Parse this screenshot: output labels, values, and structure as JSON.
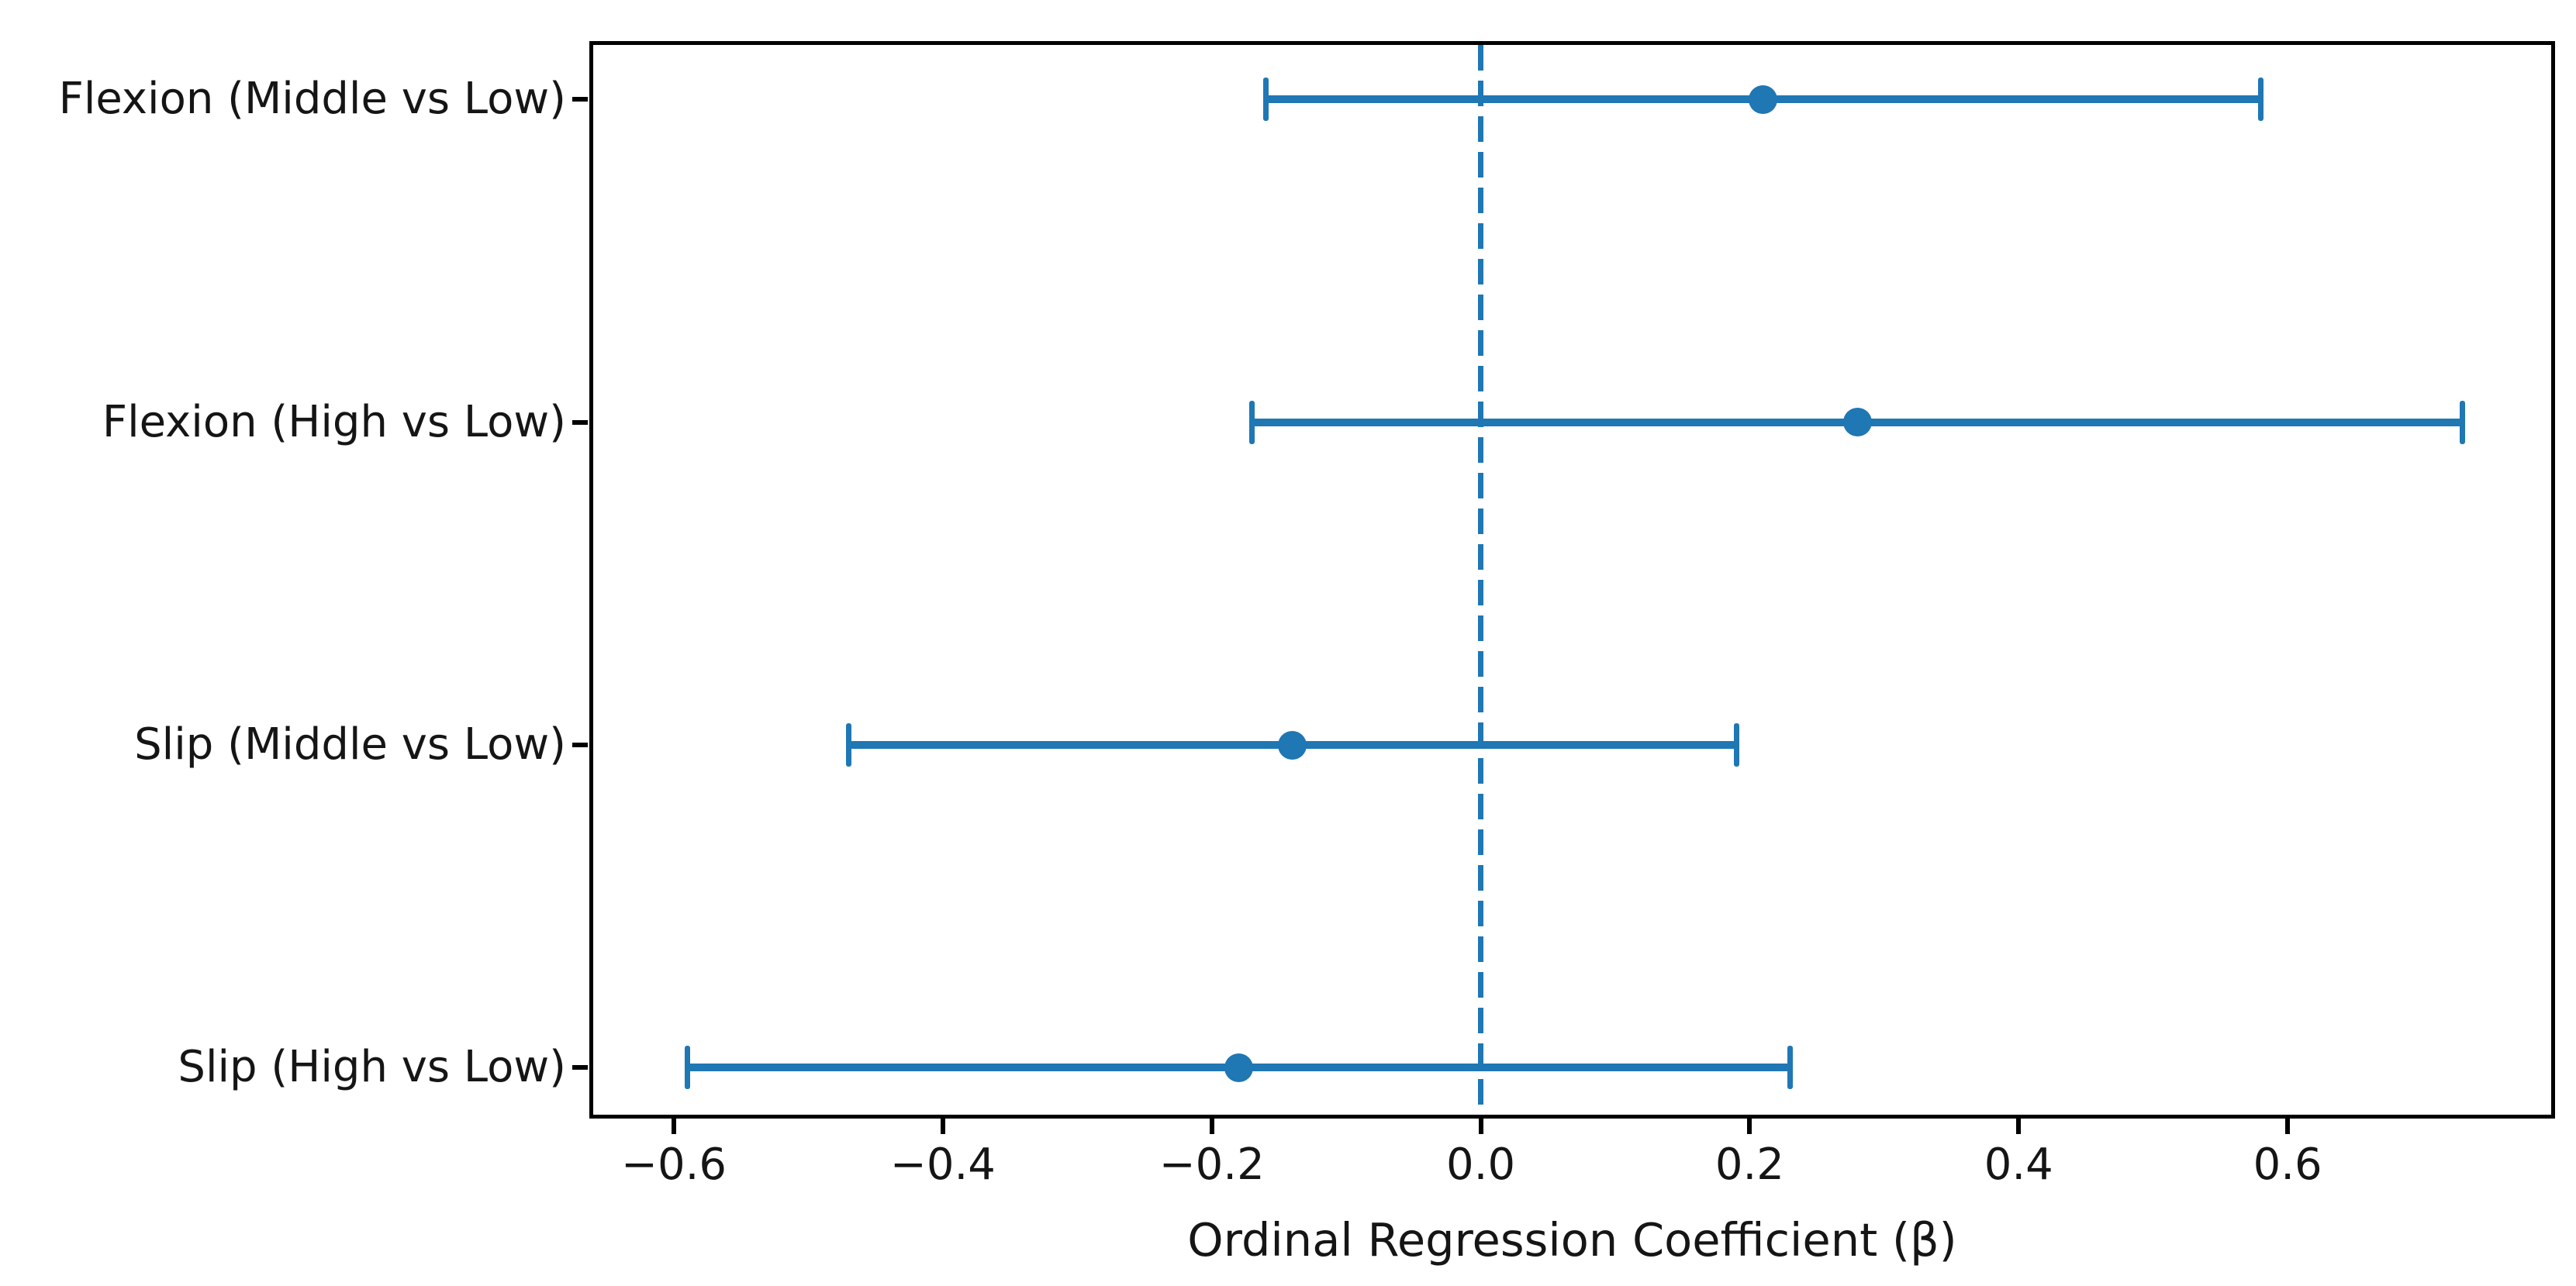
{
  "figure": {
    "background_color": "#ffffff",
    "accent_color": "#1f77b4",
    "spine_color": "#000000",
    "text_color": "#151515"
  },
  "chart_data": {
    "type": "scatter",
    "subtype": "horizontal-errorbar-coefficient-plot",
    "title": "",
    "xlabel": "Ordinal Regression Coefficient (β)",
    "ylabel": "",
    "xlim": [
      -0.66,
      0.796
    ],
    "x_ticks": [
      -0.6,
      -0.4,
      -0.2,
      0.0,
      0.2,
      0.4,
      0.6
    ],
    "x_tick_labels": [
      "−0.6",
      "−0.4",
      "−0.2",
      "0.0",
      "0.2",
      "0.4",
      "0.6"
    ],
    "categories": [
      "Flexion (Middle vs Low)",
      "Flexion (High vs Low)",
      "Slip (Middle vs Low)",
      "Slip (High vs Low)"
    ],
    "series": [
      {
        "name": "Ordinal regression coefficient",
        "values": [
          0.21,
          0.28,
          -0.14,
          -0.18
        ],
        "ci_low": [
          -0.16,
          -0.17,
          -0.47,
          -0.59
        ],
        "ci_high": [
          0.58,
          0.73,
          0.19,
          0.23
        ]
      }
    ],
    "reference_line": {
      "x": 0.0,
      "style": "dashed",
      "color": "#1f77b4"
    },
    "marker": "circle",
    "marker_color": "#1f77b4",
    "errorbar_color": "#1f77b4",
    "legend": false,
    "grid": false
  }
}
